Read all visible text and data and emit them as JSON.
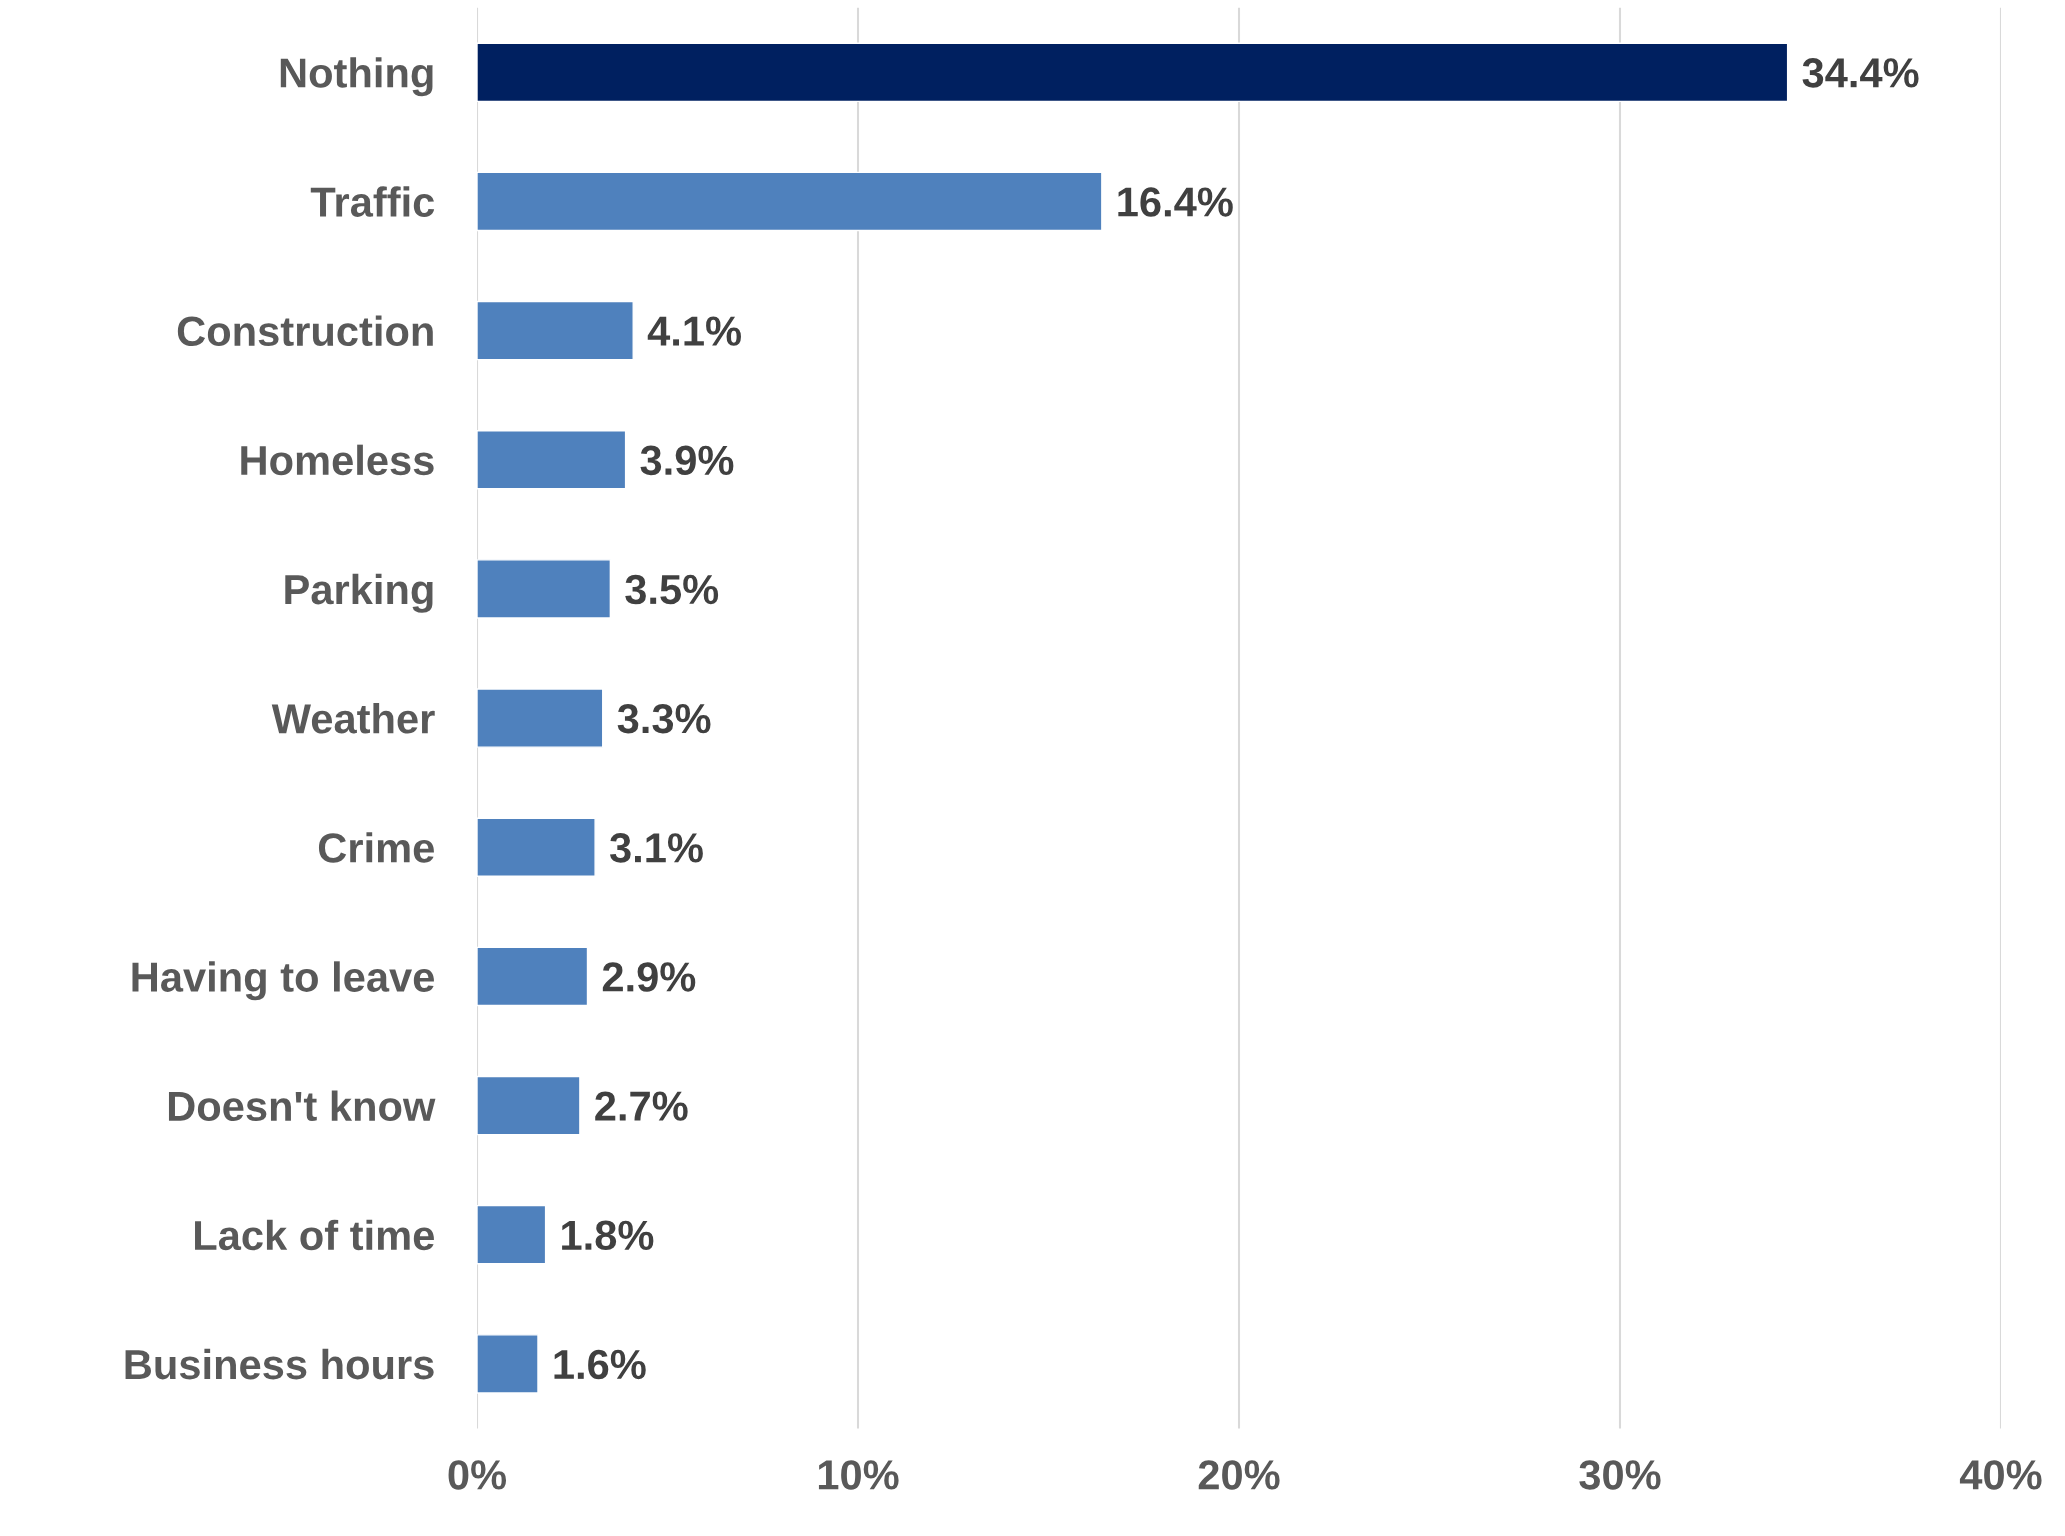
{
  "chart_data": {
    "type": "bar",
    "orientation": "horizontal",
    "categories": [
      "Nothing",
      "Traffic",
      "Construction",
      "Homeless",
      "Parking",
      "Weather",
      "Crime",
      "Having to leave",
      "Doesn't know",
      "Lack of time",
      "Business hours"
    ],
    "values": [
      34.4,
      16.4,
      4.1,
      3.9,
      3.5,
      3.3,
      3.1,
      2.9,
      2.7,
      1.8,
      1.6
    ],
    "value_labels": [
      "34.4%",
      "16.4%",
      "4.1%",
      "3.9%",
      "3.5%",
      "3.3%",
      "3.1%",
      "2.9%",
      "2.7%",
      "1.8%",
      "1.6%"
    ],
    "colors": [
      "#002060",
      "#4f81bd",
      "#4f81bd",
      "#4f81bd",
      "#4f81bd",
      "#4f81bd",
      "#4f81bd",
      "#4f81bd",
      "#4f81bd",
      "#4f81bd",
      "#4f81bd"
    ],
    "xlim": [
      0,
      40
    ],
    "xticks": [
      {
        "value": 0,
        "label": "0%"
      },
      {
        "value": 10,
        "label": "10%"
      },
      {
        "value": 20,
        "label": "20%"
      },
      {
        "value": 30,
        "label": "30%"
      },
      {
        "value": 40,
        "label": "40%"
      }
    ],
    "grid": "x",
    "legend": false
  }
}
